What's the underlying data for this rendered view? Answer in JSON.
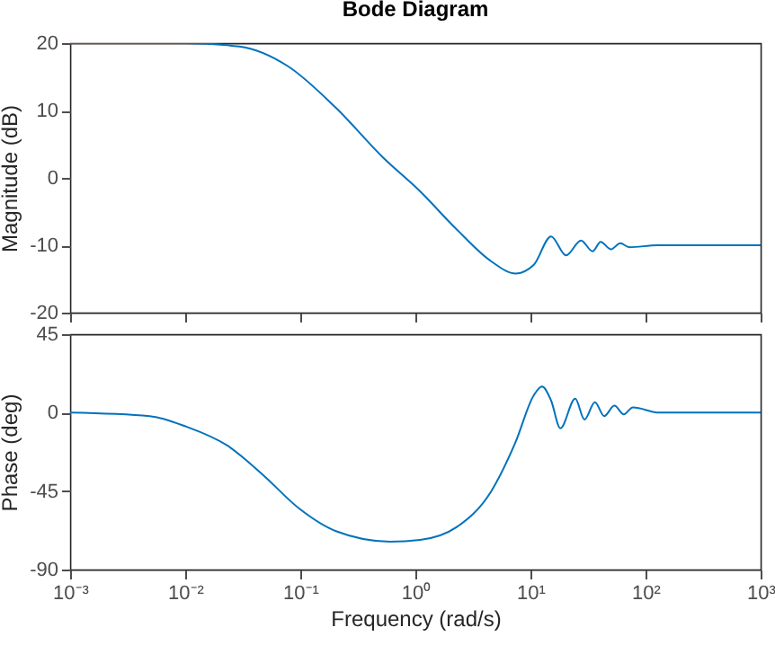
{
  "chart_data": [
    {
      "type": "line",
      "title": "Bode Diagram",
      "ylabel": "Magnitude (dB)",
      "log": "x",
      "tick_labels": "y",
      "x": [
        0.001,
        0.00316,
        0.01,
        0.0295,
        0.0776,
        0.204,
        0.525,
        1.1,
        2.24,
        4.57,
        7.41,
        10.7,
        15.1,
        20.4,
        27.5,
        34.7,
        40.7,
        50.1,
        60.3,
        72.4,
        126,
        1000
      ],
      "series": [
        {
          "color": "#0072bd",
          "values": [
            20,
            20,
            20,
            19.5,
            16.6,
            10.4,
            3.0,
            -2.0,
            -7.5,
            -12.4,
            -14.2,
            -12.9,
            -8.7,
            -11.5,
            -9.3,
            -10.9,
            -9.5,
            -10.6,
            -9.7,
            -10.3,
            -10,
            -10
          ]
        }
      ],
      "xlim": [
        0.001,
        1000
      ],
      "xticks": [
        {
          "value": 0.001,
          "label": null
        },
        {
          "value": 0.01,
          "label": null
        },
        {
          "value": 0.1,
          "label": null
        },
        {
          "value": 1,
          "label": null
        },
        {
          "value": 10,
          "label": null
        },
        {
          "value": 100,
          "label": null
        },
        {
          "value": 1000,
          "label": null
        }
      ],
      "ylim": [
        -20,
        20
      ],
      "yticks": [
        -20,
        -10,
        0,
        10,
        20
      ]
    },
    {
      "type": "line",
      "xlabel": "Frequency  (rad/s)",
      "ylabel": "Phase (deg)",
      "log": "x",
      "x": [
        0.001,
        0.0049,
        0.0102,
        0.0234,
        0.0479,
        0.0977,
        0.204,
        0.603,
        1.1,
        2.24,
        4.57,
        7.41,
        10.7,
        12.6,
        15.1,
        18.2,
        24.5,
        29.5,
        36.3,
        43.7,
        53.7,
        64.6,
        77.6,
        132,
        1000
      ],
      "series": [
        {
          "color": "#0072bd",
          "values": [
            0,
            -2,
            -8,
            -19,
            -36,
            -55,
            -68,
            -74,
            -73,
            -66,
            -45,
            -17,
            10,
            15,
            7,
            -9,
            8,
            -4,
            6,
            -2,
            4,
            -1,
            3,
            0,
            0
          ]
        }
      ],
      "xlim": [
        0.001,
        1000
      ],
      "xticks": [
        {
          "value": 0.001,
          "label": "10⁻³"
        },
        {
          "value": 0.01,
          "label": "10⁻²"
        },
        {
          "value": 0.1,
          "label": "10⁻¹"
        },
        {
          "value": 1,
          "label": "10⁰"
        },
        {
          "value": 10,
          "label": "10¹"
        },
        {
          "value": 100,
          "label": "10²"
        },
        {
          "value": 1000,
          "label": "10³"
        }
      ],
      "ylim": [
        -90,
        45
      ],
      "yticks": [
        -90,
        -45,
        0,
        45
      ]
    }
  ]
}
